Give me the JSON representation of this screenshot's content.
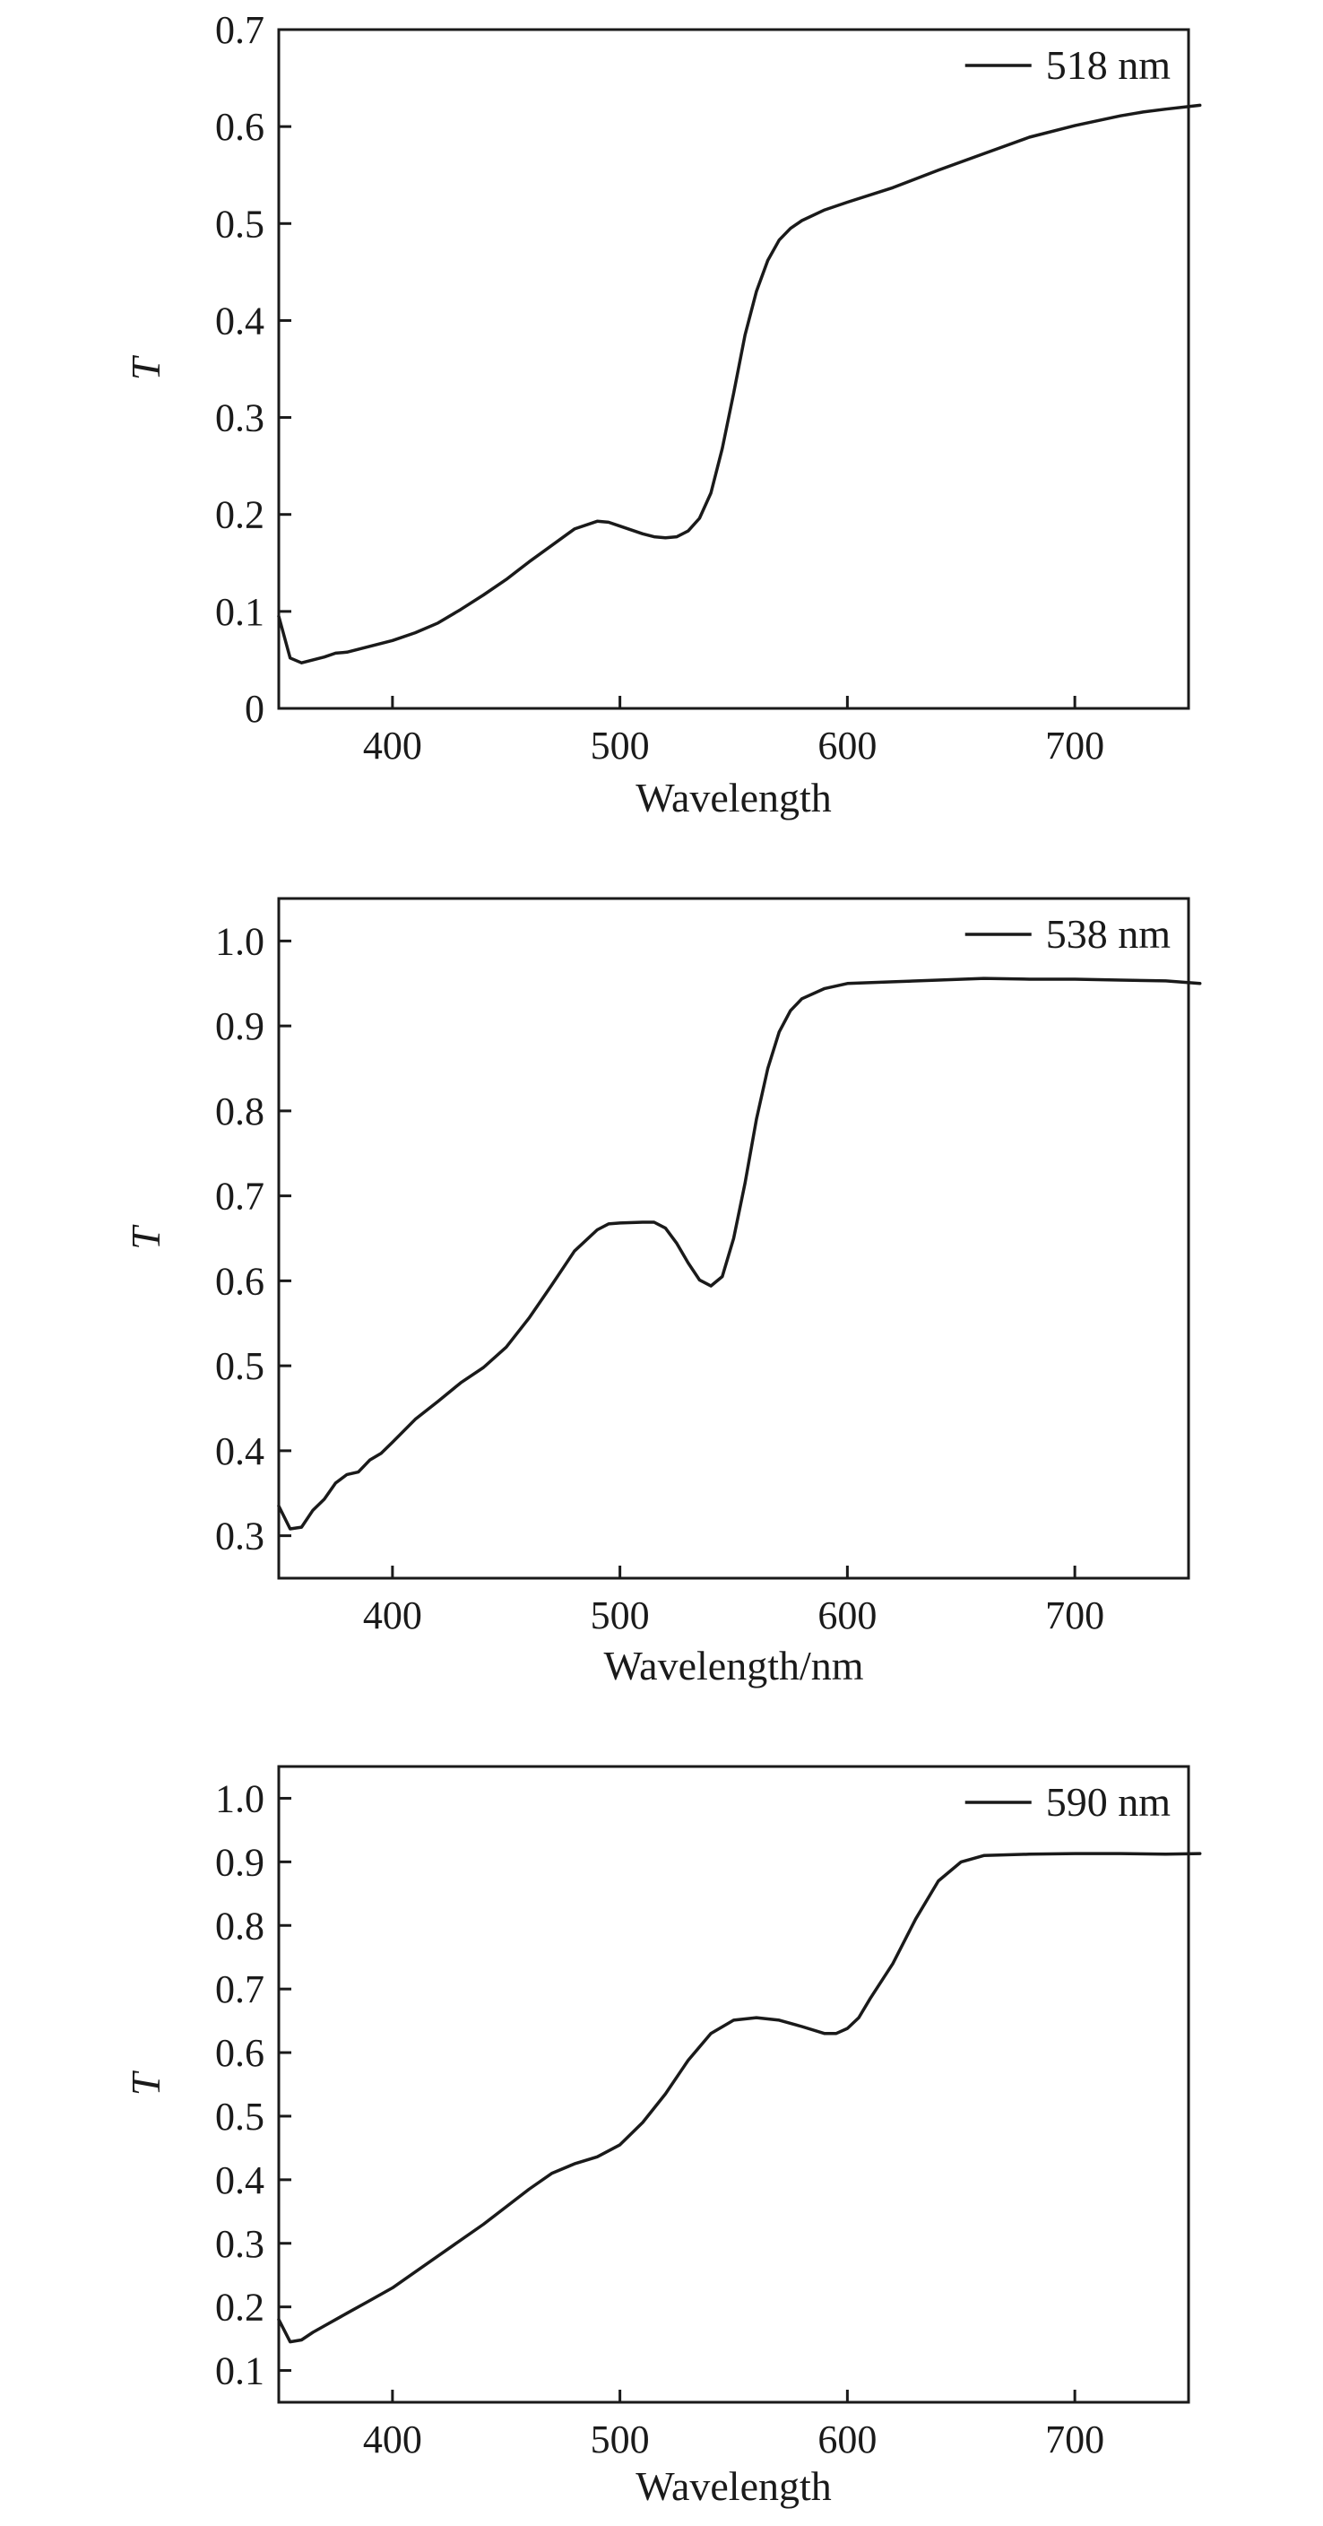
{
  "chart_data": [
    {
      "type": "line",
      "ylabel": "T",
      "xlabel": "Wavelength",
      "xlim": [
        350,
        750
      ],
      "ylim": [
        0,
        0.7
      ],
      "xticks": [
        "400",
        "500",
        "600",
        "700"
      ],
      "yticks": [
        "0",
        "0.1",
        "0.2",
        "0.3",
        "0.4",
        "0.5",
        "0.6",
        "0.7"
      ],
      "legend_position": "top-right",
      "series": [
        {
          "name": "518 nm",
          "x": [
            350,
            355,
            360,
            365,
            370,
            375,
            380,
            390,
            400,
            410,
            420,
            430,
            440,
            450,
            460,
            470,
            480,
            490,
            495,
            500,
            510,
            515,
            520,
            525,
            530,
            535,
            540,
            545,
            550,
            555,
            560,
            565,
            570,
            575,
            580,
            590,
            600,
            620,
            640,
            660,
            680,
            700,
            720,
            730,
            740,
            755
          ],
          "y": [
            0.095,
            0.052,
            0.047,
            0.05,
            0.053,
            0.057,
            0.058,
            0.064,
            0.07,
            0.078,
            0.088,
            0.102,
            0.117,
            0.133,
            0.151,
            0.168,
            0.185,
            0.193,
            0.192,
            0.188,
            0.18,
            0.177,
            0.176,
            0.177,
            0.183,
            0.196,
            0.222,
            0.268,
            0.325,
            0.385,
            0.43,
            0.462,
            0.483,
            0.495,
            0.503,
            0.514,
            0.522,
            0.537,
            0.555,
            0.572,
            0.589,
            0.601,
            0.611,
            0.615,
            0.618,
            0.622
          ]
        }
      ]
    },
    {
      "type": "line",
      "ylabel": "T",
      "xlabel": "Wavelength/nm",
      "xlim": [
        350,
        750
      ],
      "ylim": [
        0.25,
        1.05
      ],
      "xticks": [
        "400",
        "500",
        "600",
        "700"
      ],
      "yticks": [
        "0.3",
        "0.4",
        "0.5",
        "0.6",
        "0.7",
        "0.8",
        "0.9",
        "1.0"
      ],
      "legend_position": "top-right",
      "series": [
        {
          "name": "538 nm",
          "x": [
            350,
            355,
            360,
            365,
            370,
            375,
            380,
            385,
            390,
            395,
            400,
            410,
            420,
            430,
            440,
            450,
            460,
            470,
            480,
            490,
            495,
            500,
            510,
            515,
            520,
            525,
            530,
            535,
            540,
            545,
            550,
            555,
            560,
            565,
            570,
            575,
            580,
            590,
            600,
            620,
            640,
            660,
            680,
            700,
            720,
            740,
            755
          ],
          "y": [
            0.335,
            0.308,
            0.31,
            0.33,
            0.343,
            0.362,
            0.372,
            0.375,
            0.389,
            0.397,
            0.41,
            0.437,
            0.458,
            0.48,
            0.498,
            0.522,
            0.556,
            0.595,
            0.635,
            0.66,
            0.667,
            0.668,
            0.669,
            0.669,
            0.662,
            0.644,
            0.621,
            0.601,
            0.594,
            0.605,
            0.65,
            0.715,
            0.79,
            0.85,
            0.893,
            0.918,
            0.932,
            0.944,
            0.95,
            0.952,
            0.954,
            0.956,
            0.955,
            0.955,
            0.954,
            0.953,
            0.95
          ]
        }
      ]
    },
    {
      "type": "line",
      "ylabel": "T",
      "xlabel": "Wavelength",
      "xlim": [
        350,
        750
      ],
      "ylim": [
        0.05,
        1.05
      ],
      "xticks": [
        "400",
        "500",
        "600",
        "700"
      ],
      "yticks": [
        "0.1",
        "0.2",
        "0.3",
        "0.4",
        "0.5",
        "0.6",
        "0.7",
        "0.8",
        "0.9",
        "1.0"
      ],
      "legend_position": "top-right",
      "series": [
        {
          "name": "590 nm",
          "x": [
            350,
            355,
            360,
            365,
            370,
            380,
            390,
            400,
            420,
            440,
            460,
            470,
            480,
            490,
            500,
            510,
            520,
            530,
            540,
            550,
            560,
            570,
            580,
            590,
            595,
            600,
            605,
            610,
            620,
            630,
            640,
            650,
            660,
            680,
            700,
            720,
            740,
            755
          ],
          "y": [
            0.18,
            0.145,
            0.148,
            0.16,
            0.17,
            0.19,
            0.21,
            0.23,
            0.28,
            0.33,
            0.385,
            0.41,
            0.425,
            0.436,
            0.455,
            0.49,
            0.535,
            0.588,
            0.63,
            0.651,
            0.655,
            0.651,
            0.641,
            0.63,
            0.63,
            0.638,
            0.655,
            0.685,
            0.74,
            0.81,
            0.87,
            0.9,
            0.91,
            0.912,
            0.913,
            0.913,
            0.912,
            0.913
          ]
        }
      ]
    }
  ]
}
